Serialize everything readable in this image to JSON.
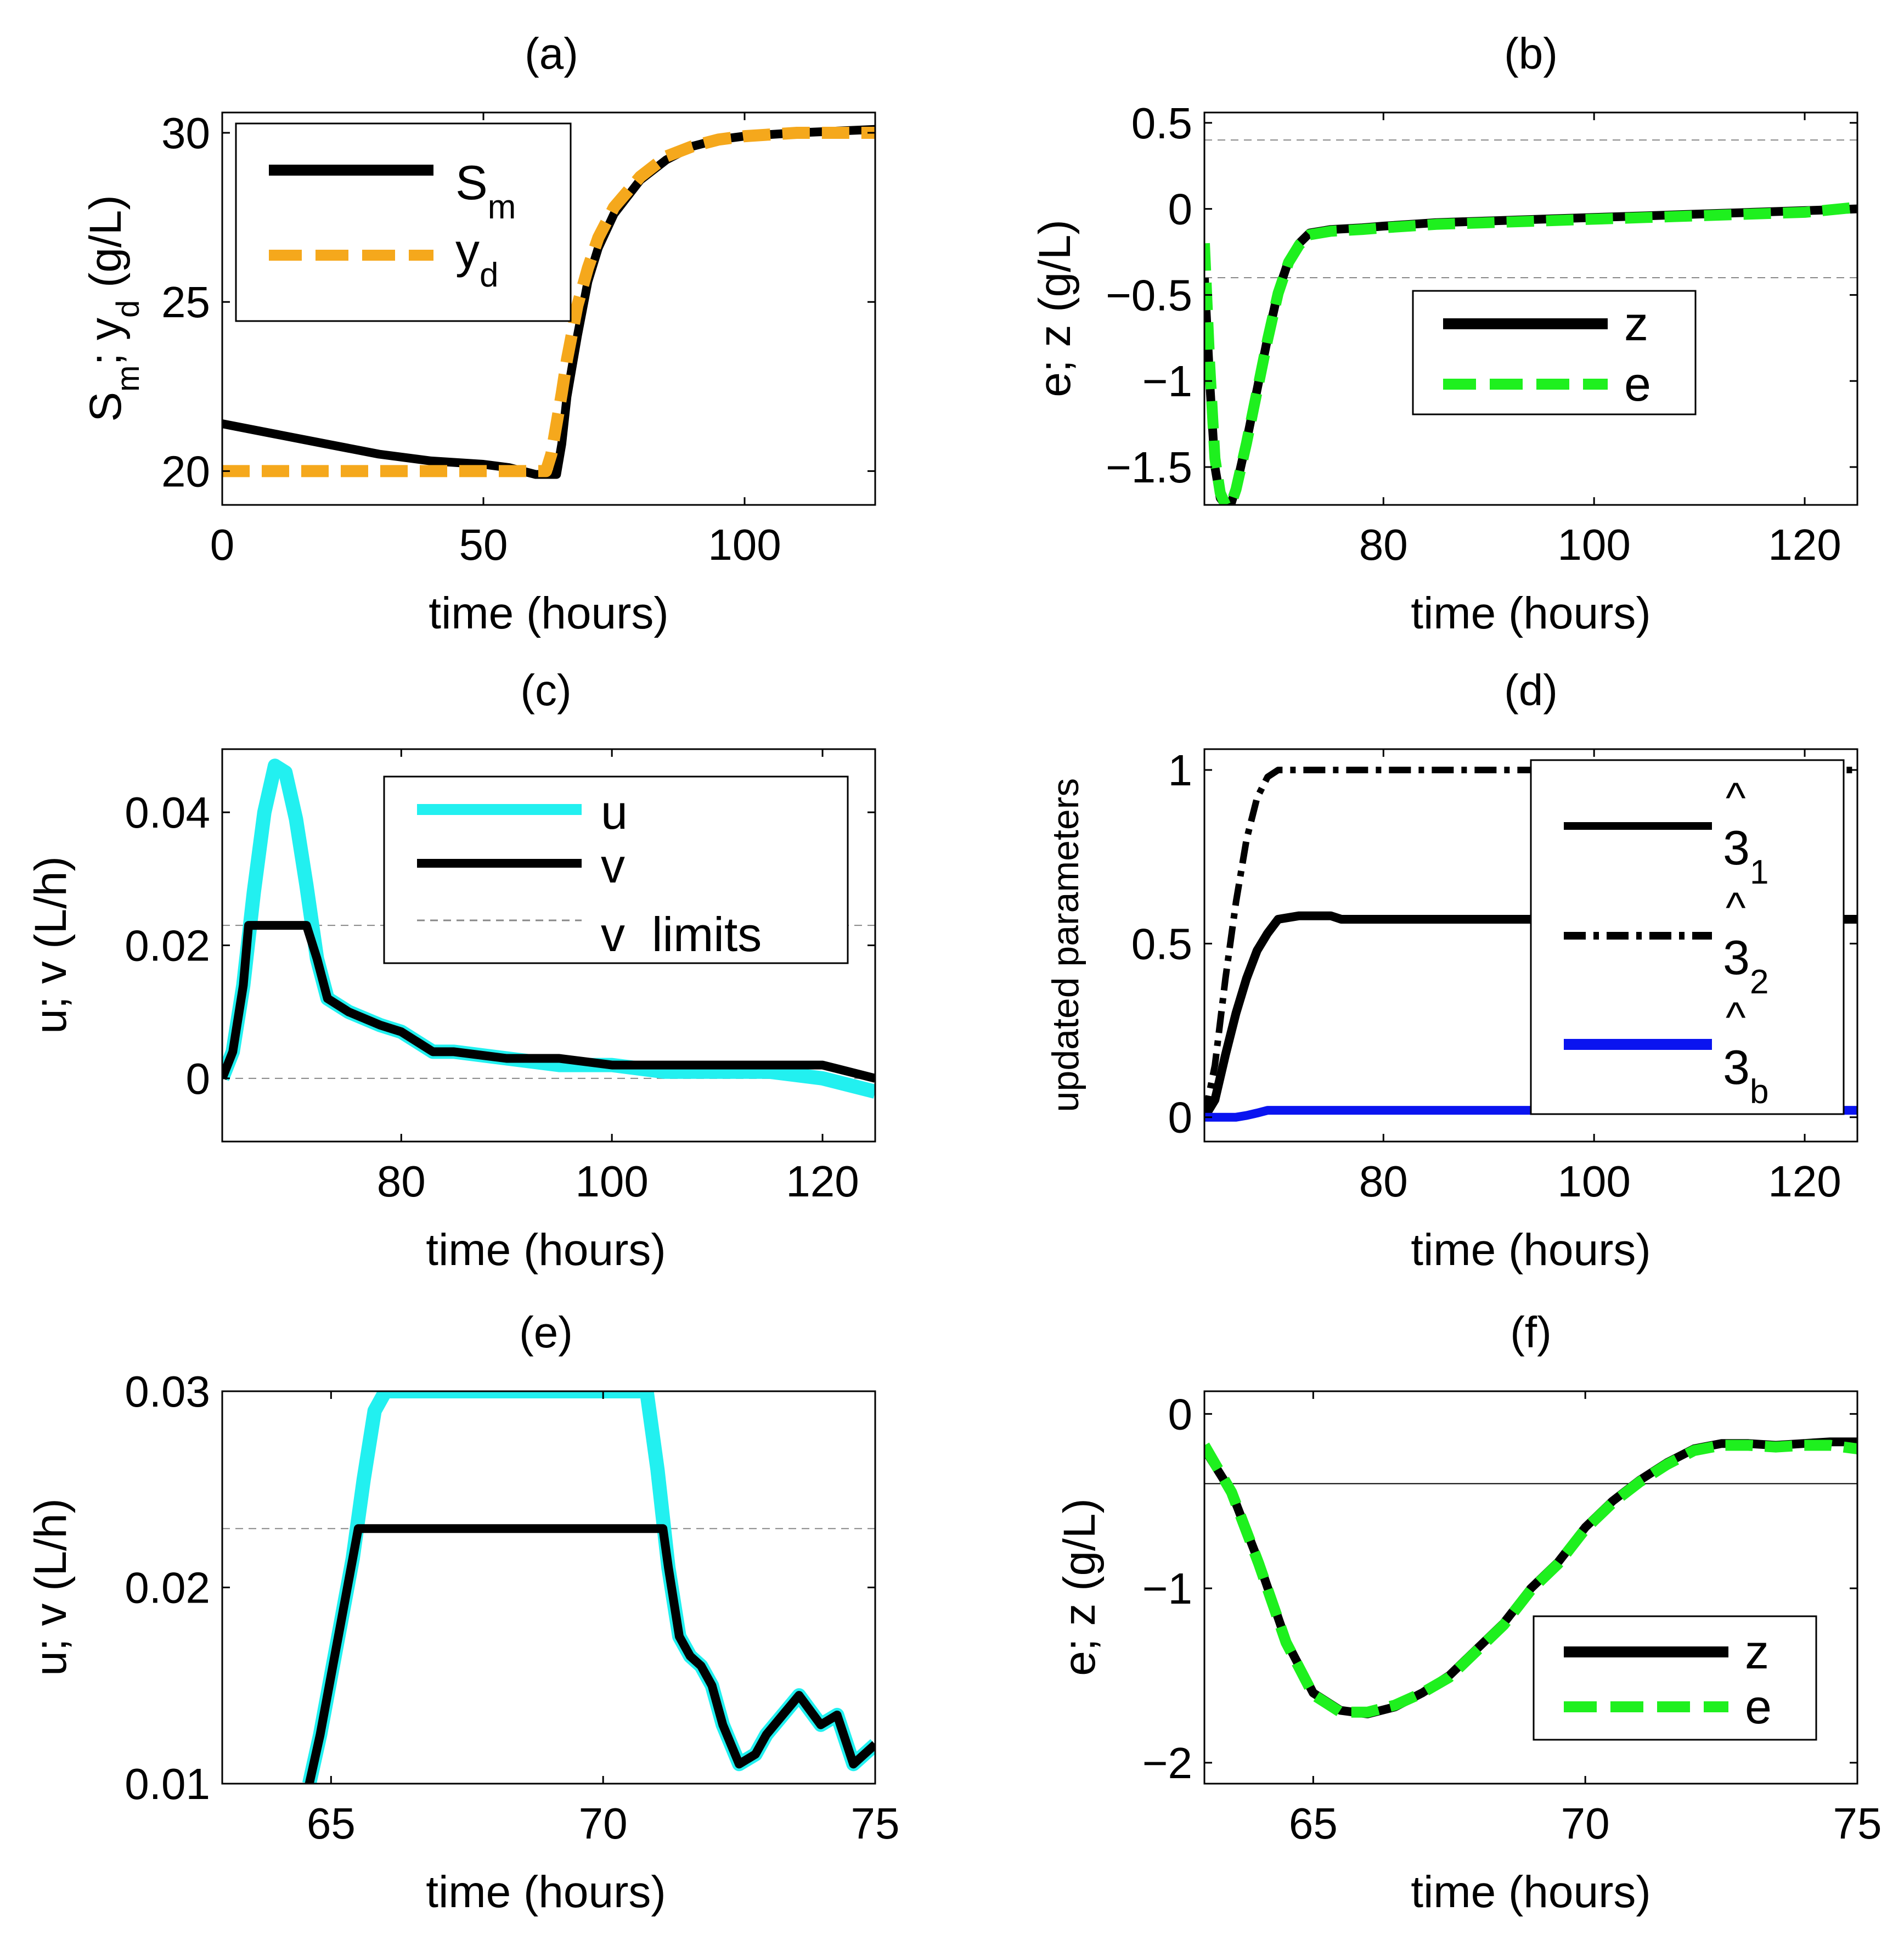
{
  "colors": {
    "black": "#000000",
    "orange": "#f5a81c",
    "green": "#1ef01e",
    "cyan": "#22f0f0",
    "blue": "#0a14f0",
    "gray": "#888888"
  },
  "chart_data": [
    {
      "id": "a",
      "type": "line",
      "title": "(a)",
      "xlabel": "time (hours)",
      "ylabel": "S_m; y_d (g/L)",
      "xlim": [
        0,
        125
      ],
      "ylim": [
        19.0,
        30.6
      ],
      "xticks": [
        0,
        50,
        100
      ],
      "xtick_labels": [
        "0",
        "50",
        "100"
      ],
      "yticks": [
        20,
        25,
        30
      ],
      "ytick_labels": [
        "20",
        "25",
        "30"
      ],
      "legend": {
        "position": "top-left",
        "entries": [
          {
            "label": "S",
            "sub": "m"
          },
          {
            "label": "y",
            "sub": "d"
          }
        ]
      },
      "series": [
        {
          "name": "S_m",
          "color": "black",
          "style": "solid",
          "x": [
            0,
            10,
            20,
            30,
            40,
            50,
            55,
            60,
            64,
            65,
            66,
            68,
            70,
            72,
            75,
            80,
            85,
            90,
            95,
            100,
            110,
            125
          ],
          "y": [
            21.4,
            21.1,
            20.8,
            20.5,
            20.3,
            20.2,
            20.1,
            19.9,
            19.9,
            20.8,
            22.2,
            24.0,
            25.6,
            26.6,
            27.6,
            28.6,
            29.2,
            29.6,
            29.8,
            29.9,
            30.0,
            30.1
          ]
        },
        {
          "name": "y_d",
          "color": "orange",
          "style": "dashed",
          "x": [
            0,
            62,
            63,
            64,
            65,
            66,
            68,
            70,
            72,
            75,
            80,
            85,
            90,
            95,
            100,
            110,
            125
          ],
          "y": [
            20,
            20,
            20.5,
            21.4,
            22.3,
            23.3,
            24.9,
            26.0,
            26.9,
            27.8,
            28.7,
            29.3,
            29.6,
            29.8,
            29.9,
            30.0,
            30.0
          ]
        }
      ],
      "hlines": []
    },
    {
      "id": "b",
      "type": "line",
      "title": "(b)",
      "xlabel": "time (hours)",
      "ylabel": "e; z (g/L)",
      "xlim": [
        63,
        125
      ],
      "ylim": [
        -1.72,
        0.56
      ],
      "xticks": [
        80,
        100,
        120
      ],
      "xtick_labels": [
        "80",
        "100",
        "120"
      ],
      "yticks": [
        -1.5,
        -1,
        -0.5,
        0,
        0.5
      ],
      "ytick_labels": [
        "−1.5",
        "−1",
        "−0.5",
        "0",
        "0.5"
      ],
      "legend": {
        "position": "center",
        "entries": [
          {
            "label": "z",
            "sub": ""
          },
          {
            "label": "e",
            "sub": ""
          }
        ]
      },
      "series": [
        {
          "name": "z",
          "color": "black",
          "style": "solid",
          "x": [
            63,
            63.5,
            64,
            64.5,
            65,
            65.5,
            66,
            67,
            68,
            69,
            70,
            71,
            72,
            73,
            75,
            78,
            80,
            85,
            90,
            95,
            100,
            105,
            110,
            115,
            120,
            125
          ],
          "y": [
            -0.4,
            -1.0,
            -1.5,
            -1.68,
            -1.72,
            -1.72,
            -1.62,
            -1.35,
            -1.05,
            -0.75,
            -0.48,
            -0.3,
            -0.2,
            -0.14,
            -0.12,
            -0.11,
            -0.1,
            -0.08,
            -0.07,
            -0.06,
            -0.05,
            -0.04,
            -0.03,
            -0.02,
            -0.01,
            0.0
          ]
        },
        {
          "name": "e",
          "color": "green",
          "style": "dashed",
          "x": [
            63,
            63.5,
            64,
            64.5,
            65,
            65.5,
            66,
            67,
            68,
            69,
            70,
            71,
            72,
            73,
            75,
            78,
            80,
            85,
            90,
            95,
            100,
            105,
            110,
            115,
            120,
            125
          ],
          "y": [
            -0.2,
            -0.9,
            -1.45,
            -1.65,
            -1.72,
            -1.72,
            -1.63,
            -1.36,
            -1.06,
            -0.76,
            -0.49,
            -0.31,
            -0.21,
            -0.15,
            -0.13,
            -0.12,
            -0.11,
            -0.09,
            -0.08,
            -0.07,
            -0.06,
            -0.05,
            -0.04,
            -0.03,
            -0.02,
            0.01
          ]
        }
      ],
      "hlines": [
        0.4,
        -0.4
      ]
    },
    {
      "id": "c",
      "type": "line",
      "title": "(c)",
      "xlabel": "time (hours)",
      "ylabel": "u; v (L/h)",
      "xlim": [
        63,
        125
      ],
      "ylim": [
        -0.0095,
        0.0495
      ],
      "xticks": [
        80,
        100,
        120
      ],
      "xtick_labels": [
        "80",
        "100",
        "120"
      ],
      "yticks": [
        0,
        0.02,
        0.04
      ],
      "ytick_labels": [
        "0",
        "0.02",
        "0.04"
      ],
      "legend": {
        "position": "top-right",
        "entries": [
          {
            "label": "u",
            "sub": ""
          },
          {
            "label": "v",
            "sub": ""
          },
          {
            "label": "v  limits",
            "sub": ""
          }
        ]
      },
      "series": [
        {
          "name": "u",
          "color": "cyan",
          "style": "solid",
          "x": [
            63,
            64,
            65,
            66,
            67,
            68,
            69,
            70,
            71,
            72,
            73,
            75,
            78,
            80,
            83,
            85,
            90,
            95,
            100,
            105,
            110,
            115,
            120,
            125
          ],
          "y": [
            0,
            0.004,
            0.014,
            0.028,
            0.04,
            0.047,
            0.046,
            0.039,
            0.029,
            0.018,
            0.012,
            0.01,
            0.008,
            0.007,
            0.004,
            0.004,
            0.003,
            0.002,
            0.002,
            0.001,
            0.001,
            0.001,
            0.0,
            -0.002
          ]
        },
        {
          "name": "v",
          "color": "black",
          "style": "solid",
          "x": [
            63,
            64,
            65,
            65.5,
            66,
            70,
            71,
            72,
            73,
            75,
            78,
            80,
            83,
            85,
            90,
            95,
            100,
            105,
            110,
            115,
            120,
            125
          ],
          "y": [
            0,
            0.004,
            0.014,
            0.023,
            0.023,
            0.023,
            0.023,
            0.018,
            0.012,
            0.01,
            0.008,
            0.007,
            0.004,
            0.004,
            0.003,
            0.003,
            0.002,
            0.002,
            0.002,
            0.002,
            0.002,
            0.0
          ]
        }
      ],
      "hlines": [
        0.023,
        0.0
      ]
    },
    {
      "id": "d",
      "type": "line",
      "title": "(d)",
      "xlabel": "time (hours)",
      "ylabel": "updated parameters",
      "xlim": [
        63,
        125
      ],
      "ylim": [
        -0.07,
        1.06
      ],
      "xticks": [
        80,
        100,
        120
      ],
      "xtick_labels": [
        "80",
        "100",
        "120"
      ],
      "yticks": [
        0,
        0.5,
        1
      ],
      "ytick_labels": [
        "0",
        "0.5",
        "1"
      ],
      "legend": {
        "position": "top-right",
        "entries": [
          {
            "label": "3",
            "sub": "1",
            "hat": "^"
          },
          {
            "label": "3",
            "sub": "2",
            "hat": "^"
          },
          {
            "label": "3",
            "sub": "b",
            "hat": "^"
          }
        ]
      },
      "series": [
        {
          "name": "theta_1",
          "color": "black",
          "style": "solid",
          "x": [
            63,
            64,
            65,
            66,
            67,
            68,
            69,
            70,
            72,
            75,
            76,
            80,
            90,
            100,
            110,
            125
          ],
          "y": [
            0,
            0.05,
            0.18,
            0.3,
            0.4,
            0.48,
            0.53,
            0.57,
            0.58,
            0.58,
            0.57,
            0.57,
            0.57,
            0.57,
            0.57,
            0.57
          ]
        },
        {
          "name": "theta_2",
          "color": "black",
          "style": "dashdot",
          "x": [
            63,
            64,
            65,
            66,
            67,
            68,
            69,
            70,
            72,
            80,
            90,
            100,
            110,
            125
          ],
          "y": [
            0,
            0.15,
            0.4,
            0.62,
            0.8,
            0.92,
            0.98,
            1.0,
            1.0,
            1.0,
            1.0,
            1.0,
            1.0,
            1.0
          ]
        },
        {
          "name": "theta_b",
          "color": "blue",
          "style": "solid",
          "x": [
            63,
            66,
            67,
            68,
            69,
            70,
            80,
            90,
            100,
            110,
            125
          ],
          "y": [
            0,
            0,
            0.005,
            0.012,
            0.02,
            0.02,
            0.02,
            0.02,
            0.02,
            0.02,
            0.02
          ]
        }
      ],
      "hlines": []
    },
    {
      "id": "e",
      "type": "line",
      "title": "(e)",
      "xlabel": "time (hours)",
      "ylabel": "u; v (L/h)",
      "xlim": [
        63,
        75
      ],
      "ylim": [
        0.01,
        0.03
      ],
      "xticks": [
        65,
        70,
        75
      ],
      "xtick_labels": [
        "65",
        "70",
        "75"
      ],
      "yticks": [
        0.01,
        0.02,
        0.03
      ],
      "ytick_labels": [
        "0.01",
        "0.02",
        "0.03"
      ],
      "legend": {
        "position": "none",
        "entries": []
      },
      "series": [
        {
          "name": "u",
          "color": "cyan",
          "style": "solid",
          "x": [
            64.6,
            64.8,
            65.0,
            65.2,
            65.4,
            65.6,
            65.8,
            66.0,
            70.8,
            71.0,
            71.2,
            71.4,
            71.6,
            71.8,
            72.0,
            72.2,
            72.5,
            72.8,
            73.0,
            73.3,
            73.6,
            74.0,
            74.3,
            74.6,
            75.0
          ],
          "y": [
            0.01,
            0.0125,
            0.0155,
            0.0185,
            0.0215,
            0.0255,
            0.029,
            0.03,
            0.03,
            0.026,
            0.021,
            0.0175,
            0.0165,
            0.016,
            0.015,
            0.013,
            0.011,
            0.0115,
            0.0125,
            0.0135,
            0.0145,
            0.013,
            0.0135,
            0.011,
            0.012
          ]
        },
        {
          "name": "v",
          "color": "black",
          "style": "solid",
          "x": [
            64.6,
            64.8,
            65.0,
            65.2,
            65.4,
            65.5,
            71.1,
            71.2,
            71.4,
            71.6,
            71.8,
            72.0,
            72.2,
            72.5,
            72.8,
            73.0,
            73.3,
            73.6,
            74.0,
            74.3,
            74.6,
            75.0
          ],
          "y": [
            0.01,
            0.0125,
            0.0155,
            0.0185,
            0.0215,
            0.023,
            0.023,
            0.021,
            0.0175,
            0.0165,
            0.016,
            0.015,
            0.013,
            0.011,
            0.0115,
            0.0125,
            0.0135,
            0.0145,
            0.013,
            0.0135,
            0.011,
            0.012
          ]
        }
      ],
      "hlines": [
        0.023
      ]
    },
    {
      "id": "f",
      "type": "line",
      "title": "(f)",
      "xlabel": "time (hours)",
      "ylabel": "e; z (g/L)",
      "xlim": [
        63,
        75
      ],
      "ylim": [
        -2.12,
        0.13
      ],
      "xticks": [
        65,
        70,
        75
      ],
      "xtick_labels": [
        "65",
        "70",
        "75"
      ],
      "yticks": [
        -2,
        -1,
        0
      ],
      "ytick_labels": [
        "−2",
        "−1",
        "0"
      ],
      "legend": {
        "position": "bottom-right",
        "entries": [
          {
            "label": "z",
            "sub": ""
          },
          {
            "label": "e",
            "sub": ""
          }
        ]
      },
      "series": [
        {
          "name": "z",
          "color": "black",
          "style": "solid",
          "x": [
            63,
            63.5,
            64,
            64.5,
            65,
            65.5,
            66,
            66.5,
            67,
            67.5,
            68,
            68.5,
            69,
            69.5,
            70,
            70.5,
            71,
            71.5,
            72,
            72.5,
            73,
            73.5,
            74,
            74.5,
            75
          ],
          "y": [
            -0.2,
            -0.45,
            -0.85,
            -1.3,
            -1.6,
            -1.7,
            -1.72,
            -1.68,
            -1.6,
            -1.5,
            -1.35,
            -1.2,
            -1.0,
            -0.85,
            -0.65,
            -0.5,
            -0.38,
            -0.28,
            -0.2,
            -0.17,
            -0.17,
            -0.18,
            -0.17,
            -0.16,
            -0.16
          ]
        },
        {
          "name": "e",
          "color": "green",
          "style": "dashed",
          "x": [
            63,
            63.5,
            64,
            64.5,
            65,
            65.5,
            66,
            66.5,
            67,
            67.5,
            68,
            68.5,
            69,
            69.5,
            70,
            70.5,
            71,
            71.5,
            72,
            72.5,
            73,
            73.5,
            74,
            74.5,
            75
          ],
          "y": [
            -0.18,
            -0.45,
            -0.86,
            -1.31,
            -1.61,
            -1.71,
            -1.71,
            -1.67,
            -1.6,
            -1.51,
            -1.36,
            -1.21,
            -1.01,
            -0.86,
            -0.66,
            -0.51,
            -0.39,
            -0.29,
            -0.21,
            -0.18,
            -0.18,
            -0.19,
            -0.18,
            -0.18,
            -0.2
          ]
        }
      ],
      "hlines": [
        -0.4
      ]
    }
  ]
}
